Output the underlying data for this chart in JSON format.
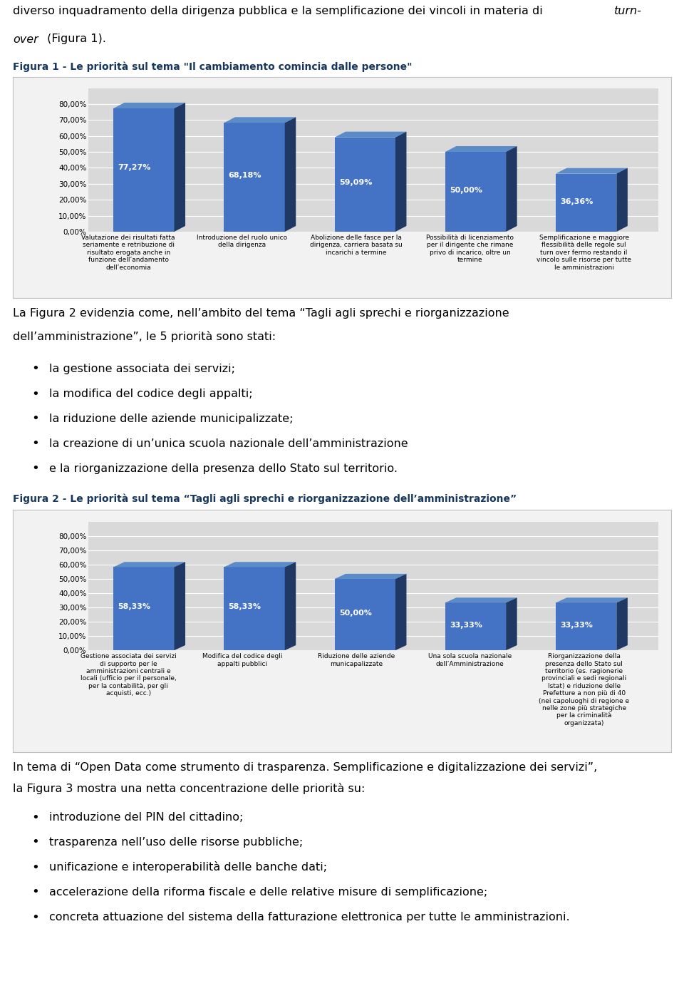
{
  "fig1_title": "Figura 1 - Le priorità sul tema \"Il cambiamento comincia dalle persone\"",
  "fig1_values": [
    77.27,
    68.18,
    59.09,
    50.0,
    36.36
  ],
  "fig1_labels": [
    "Valutazione dei risultati fatta\nseriamente e retribuzione di\nrisultato erogata anche in\nfunzione dell’andamento\ndell’economia",
    "Introduzione del ruolo unico\ndella dirigenza",
    "Abolizione delle fasce per la\ndirigenza, carriera basata su\nincarichi a termine",
    "Possibilità di licenziamento\nper il dirigente che rimane\nprivo di incarico, oltre un\ntermine",
    "Semplificazione e maggiore\nflessibilità delle regole sul\nturn over fermo restando il\nvincolo sulle risorse per tutte\nle amministrazioni"
  ],
  "fig2_title": "Figura 2 - Le priorità sul tema “Tagli agli sprechi e riorganizzazione dell’amministrazione”",
  "fig2_values": [
    58.33,
    58.33,
    50.0,
    33.33,
    33.33
  ],
  "fig2_labels": [
    "Gestione associata dei servizi\ndi supporto per le\namministrazioni centrali e\nlocali (ufficio per il personale,\nper la contabilità, per gli\nacquisti, ecc.)",
    "Modifica del codice degli\nappalti pubblici",
    "Riduzione delle aziende\nmunicapalizzate",
    "Una sola scuola nazionale\ndell’Amministrazione",
    "Riorganizzazione della\npresenza dello Stato sul\nterritorio (es. ragionerie\nprovinciali e sedi regionali\nIstat) e riduzione delle\nPrefetture a non più di 40\n(nei capoluoghi di regione e\nnelle zone più strategiche\nper la criminalità\norganizzata)"
  ],
  "middle_text_line1": "La Figura 2 evidenzia come, nell’ambito del tema “Tagli agli sprechi e riorganizzazione",
  "middle_text_line2": "dell’amministrazione”, le 5 priorità sono stati:",
  "middle_bullets": [
    "la gestione associata dei servizi;",
    "la modifica del codice degli appalti;",
    "la riduzione delle aziende municipalizzate;",
    "la creazione di un’unica scuola nazionale dell’amministrazione",
    "e la riorganizzazione della presenza dello Stato sul territorio."
  ],
  "bottom_text_line1": "In tema di “Open Data come strumento di trasparenza. Semplificazione e digitalizzazione dei servizi”,",
  "bottom_text_line2": "la Figura 3 mostra una netta concentrazione delle priorità su:",
  "bottom_bullets": [
    "introduzione del PIN del cittadino;",
    "trasparenza nell’uso delle risorse pubbliche;",
    "unificazione e interoperabilità delle banche dati;",
    "accelerazione della riforma fiscale e delle relative misure di semplificazione;",
    "concreta attuazione del sistema della fatturazione elettronica per tutte le amministrazioni."
  ],
  "bar_color": "#4472C4",
  "bar_top_color": "#5B8CC8",
  "bar_side_color": "#1F3864",
  "chart_outer_bg": "#F2F2F2",
  "chart_inner_bg": "#D9D9D9",
  "chart_shadow_bg": "#BFBFBF",
  "grid_color": "#FFFFFF",
  "border_color": "#C0C0C0",
  "title_color": "#17375E",
  "text_color": "#000000",
  "bg_color": "#FFFFFF",
  "ytick_labels": [
    "0,00%",
    "10,00%",
    "20,00%",
    "30,00%",
    "40,00%",
    "50,00%",
    "60,00%",
    "70,00%",
    "80,00%"
  ],
  "ytick_values": [
    0,
    10,
    20,
    30,
    40,
    50,
    60,
    70,
    80
  ]
}
